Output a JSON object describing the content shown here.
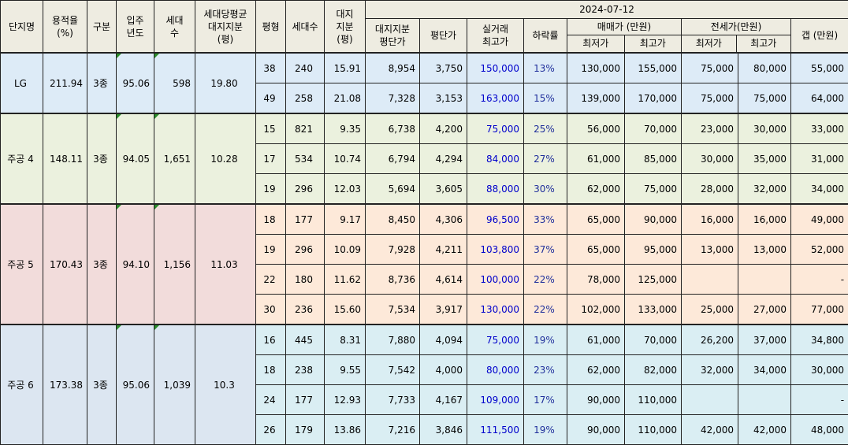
{
  "header": {
    "danji": "단지명",
    "yongjeok": "용적율",
    "yongjeok_unit": "(%)",
    "gubun": "구분",
    "ipju1": "입주",
    "ipju2": "년도",
    "sedae1": "세대",
    "sedae2": "수",
    "avg1": "세대당평균",
    "avg2": "대지지분",
    "avg3": "(평)",
    "pyeong": "평형",
    "sedaesu": "세대수",
    "daeji1": "대지",
    "daeji2": "지분",
    "daeji3": "(평)",
    "date": "2024-07-12",
    "djprice1": "대지지분",
    "djprice2": "평단가",
    "pprice": "평단가",
    "real1": "실거래",
    "real2": "최고가",
    "drop": "하락률",
    "maemae": "매매가 (만원)",
    "jeonse": "전세가(만원)",
    "min": "최저가",
    "max": "최고가",
    "gap": "갭 (만원)"
  },
  "groups": [
    {
      "name": "LG",
      "yongjeok": "211.94",
      "gubun": "3종",
      "year": "95.06",
      "units": "598",
      "avg": "19.80",
      "rows": [
        {
          "py": "38",
          "cnt": "240",
          "dj": "15.91",
          "djp": "8,954",
          "pp": "3,750",
          "real": "150,000",
          "drop": "13%",
          "mmin": "130,000",
          "mmax": "155,000",
          "jmin": "75,000",
          "jmax": "80,000",
          "gap": "55,000"
        },
        {
          "py": "49",
          "cnt": "258",
          "dj": "21.08",
          "djp": "7,328",
          "pp": "3,153",
          "real": "163,000",
          "drop": "15%",
          "mmin": "139,000",
          "mmax": "170,000",
          "jmin": "75,000",
          "jmax": "75,000",
          "gap": "64,000"
        }
      ]
    },
    {
      "name": "주공 4",
      "yongjeok": "148.11",
      "gubun": "3종",
      "year": "94.05",
      "units": "1,651",
      "avg": "10.28",
      "rows": [
        {
          "py": "15",
          "cnt": "821",
          "dj": "9.35",
          "djp": "6,738",
          "pp": "4,200",
          "real": "75,000",
          "drop": "25%",
          "mmin": "56,000",
          "mmax": "70,000",
          "jmin": "23,000",
          "jmax": "30,000",
          "gap": "33,000"
        },
        {
          "py": "17",
          "cnt": "534",
          "dj": "10.74",
          "djp": "6,794",
          "pp": "4,294",
          "real": "84,000",
          "drop": "27%",
          "mmin": "61,000",
          "mmax": "85,000",
          "jmin": "30,000",
          "jmax": "35,000",
          "gap": "31,000"
        },
        {
          "py": "19",
          "cnt": "296",
          "dj": "12.03",
          "djp": "5,694",
          "pp": "3,605",
          "real": "88,000",
          "drop": "30%",
          "mmin": "62,000",
          "mmax": "75,000",
          "jmin": "28,000",
          "jmax": "32,000",
          "gap": "34,000"
        }
      ]
    },
    {
      "name": "주공 5",
      "yongjeok": "170.43",
      "gubun": "3종",
      "year": "94.10",
      "units": "1,156",
      "avg": "11.03",
      "rows": [
        {
          "py": "18",
          "cnt": "177",
          "dj": "9.17",
          "djp": "8,450",
          "pp": "4,306",
          "real": "96,500",
          "drop": "33%",
          "mmin": "65,000",
          "mmax": "90,000",
          "jmin": "16,000",
          "jmax": "16,000",
          "gap": "49,000"
        },
        {
          "py": "19",
          "cnt": "296",
          "dj": "10.09",
          "djp": "7,928",
          "pp": "4,211",
          "real": "103,800",
          "drop": "37%",
          "mmin": "65,000",
          "mmax": "95,000",
          "jmin": "13,000",
          "jmax": "13,000",
          "gap": "52,000"
        },
        {
          "py": "22",
          "cnt": "180",
          "dj": "11.62",
          "djp": "8,736",
          "pp": "4,614",
          "real": "100,000",
          "drop": "22%",
          "mmin": "78,000",
          "mmax": "125,000",
          "jmin": "",
          "jmax": "",
          "gap": "-"
        },
        {
          "py": "30",
          "cnt": "236",
          "dj": "15.60",
          "djp": "7,534",
          "pp": "3,917",
          "real": "130,000",
          "drop": "22%",
          "mmin": "102,000",
          "mmax": "133,000",
          "jmin": "25,000",
          "jmax": "27,000",
          "gap": "77,000"
        }
      ]
    },
    {
      "name": "주공 6",
      "yongjeok": "173.38",
      "gubun": "3종",
      "year": "95.06",
      "units": "1,039",
      "avg": "10.3",
      "rows": [
        {
          "py": "16",
          "cnt": "445",
          "dj": "8.31",
          "djp": "7,880",
          "pp": "4,094",
          "real": "75,000",
          "drop": "19%",
          "mmin": "61,000",
          "mmax": "70,000",
          "jmin": "26,200",
          "jmax": "37,000",
          "gap": "34,800"
        },
        {
          "py": "18",
          "cnt": "238",
          "dj": "9.55",
          "djp": "7,542",
          "pp": "4,000",
          "real": "80,000",
          "drop": "23%",
          "mmin": "62,000",
          "mmax": "82,000",
          "jmin": "32,000",
          "jmax": "34,000",
          "gap": "30,000"
        },
        {
          "py": "24",
          "cnt": "177",
          "dj": "12.93",
          "djp": "7,733",
          "pp": "4,167",
          "real": "109,000",
          "drop": "17%",
          "mmin": "90,000",
          "mmax": "110,000",
          "jmin": "",
          "jmax": "",
          "gap": "-"
        },
        {
          "py": "26",
          "cnt": "179",
          "dj": "13.86",
          "djp": "7,216",
          "pp": "3,846",
          "real": "111,500",
          "drop": "19%",
          "mmin": "90,000",
          "mmax": "110,000",
          "jmin": "42,000",
          "jmax": "42,000",
          "gap": "48,000"
        }
      ]
    }
  ]
}
